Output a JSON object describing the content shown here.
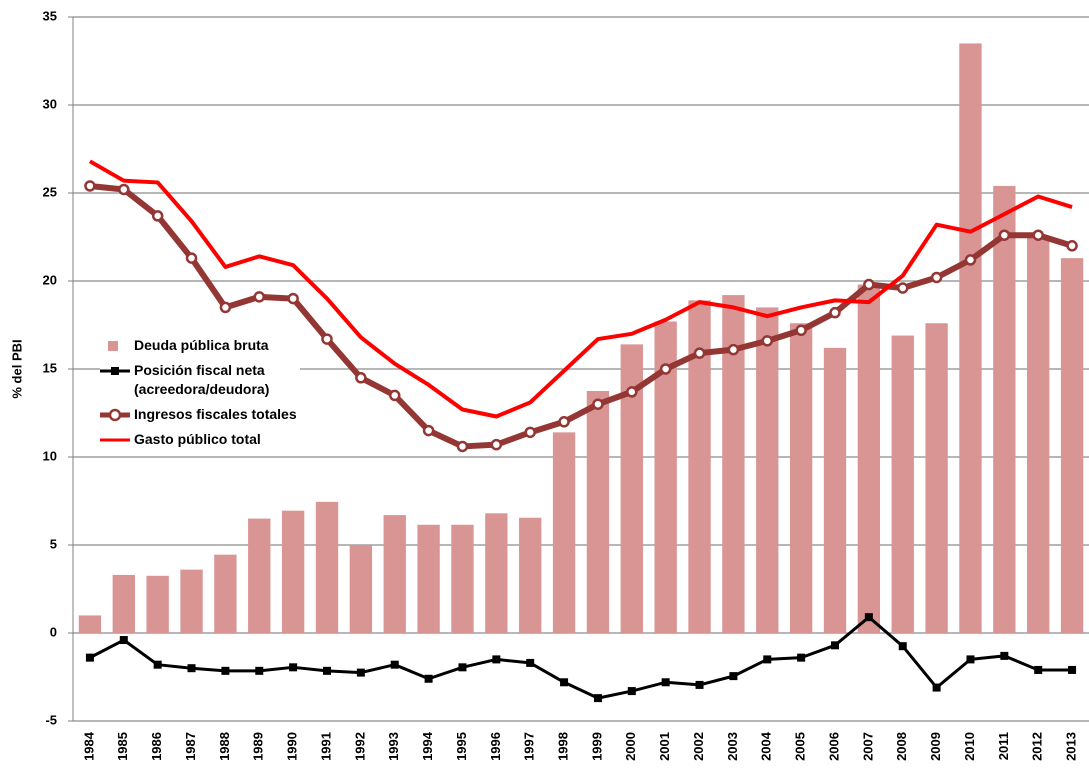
{
  "chart_data": {
    "type": "bar_line",
    "y_label": "% del PBI",
    "categories": [
      "1984",
      "1985",
      "1986",
      "1987",
      "1988",
      "1989",
      "1990",
      "1991",
      "1992",
      "1993",
      "1994",
      "1995",
      "1996",
      "1997",
      "1998",
      "1999",
      "2000",
      "2001",
      "2002",
      "2003",
      "2004",
      "2005",
      "2006",
      "2007",
      "2008",
      "2009",
      "2010",
      "2011",
      "2012",
      "2013"
    ],
    "series": [
      {
        "name": "Deuda pública bruta",
        "kind": "bar",
        "color": "#d99594",
        "values": [
          1.0,
          3.3,
          3.25,
          3.6,
          4.45,
          6.5,
          6.95,
          7.45,
          5.0,
          6.7,
          6.15,
          6.15,
          6.8,
          6.55,
          11.4,
          13.75,
          16.4,
          17.7,
          18.9,
          19.2,
          18.5,
          17.6,
          16.2,
          19.8,
          16.9,
          17.6,
          33.5,
          25.4,
          22.6,
          21.3
        ]
      },
      {
        "name": "Posición fiscal neta (acreedora/deudora)",
        "kind": "line",
        "marker": "square",
        "color": "#000000",
        "values": [
          -1.4,
          -0.4,
          -1.8,
          -2.0,
          -2.15,
          -2.15,
          -1.95,
          -2.15,
          -2.25,
          -1.8,
          -2.6,
          -1.95,
          -1.5,
          -1.7,
          -2.8,
          -3.7,
          -3.3,
          -2.8,
          -2.95,
          -2.45,
          -1.5,
          -1.4,
          -0.7,
          0.9,
          -0.75,
          -3.1,
          -1.5,
          -1.3,
          -2.1,
          -2.1
        ]
      },
      {
        "name": "Ingresos fiscales totales",
        "kind": "line",
        "marker": "circle",
        "color": "#943634",
        "values": [
          25.4,
          25.2,
          23.7,
          21.3,
          18.5,
          19.1,
          19.0,
          16.7,
          14.5,
          13.5,
          11.5,
          10.6,
          10.7,
          11.4,
          12.0,
          13.0,
          13.7,
          15.0,
          15.9,
          16.1,
          16.6,
          17.2,
          18.2,
          19.8,
          19.6,
          20.2,
          21.2,
          22.6,
          22.6,
          22.0
        ]
      },
      {
        "name": "Gasto público total",
        "kind": "line",
        "marker": "none",
        "color": "#ff0000",
        "values": [
          26.8,
          25.7,
          25.6,
          23.4,
          20.8,
          21.4,
          20.9,
          19.0,
          16.8,
          15.3,
          14.1,
          12.7,
          12.3,
          13.1,
          14.9,
          16.7,
          17.0,
          17.8,
          18.8,
          18.5,
          18.0,
          18.5,
          18.9,
          18.8,
          20.3,
          23.2,
          22.8,
          23.8,
          24.8,
          24.2
        ]
      }
    ],
    "ylim": [
      -5,
      35
    ],
    "yticks": [
      -5,
      0,
      5,
      10,
      15,
      20,
      25,
      30,
      35
    ],
    "grid": true
  }
}
